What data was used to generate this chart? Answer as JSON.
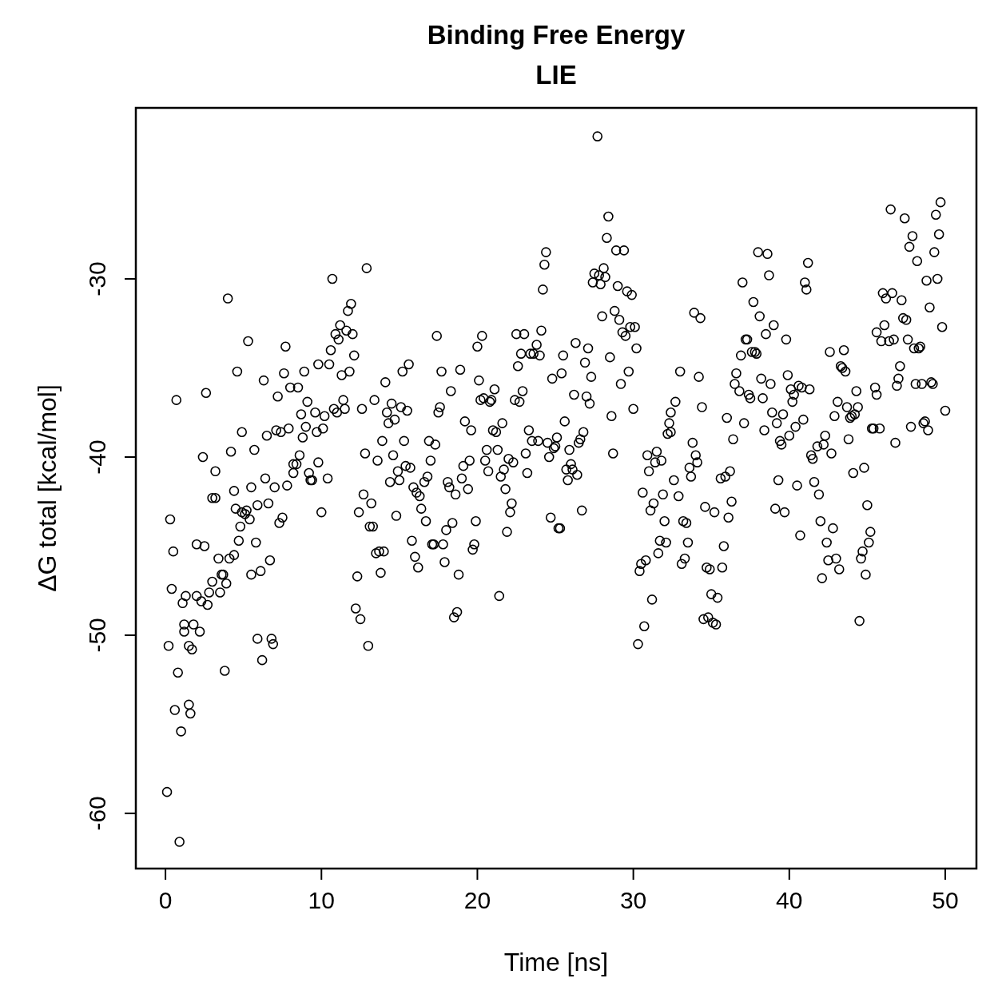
{
  "chart_data": {
    "type": "scatter",
    "title": "Binding Free Energy",
    "subtitle": "LIE",
    "xlabel": "Time [ns]",
    "ylabel": "ΔG total [kcal/mol]",
    "xlim": [
      -1.9,
      52
    ],
    "ylim": [
      -63.1,
      -20.4
    ],
    "xticks": [
      0,
      10,
      20,
      30,
      40,
      50
    ],
    "yticks": [
      -60,
      -50,
      -40,
      -30
    ],
    "grid": false,
    "marker": "circle",
    "series": [
      {
        "color": "#000000",
        "x": [
          0.1,
          0.9,
          0.2,
          0.3,
          0.5,
          0.4,
          0.6,
          0.7,
          0.8,
          1.0,
          1.1,
          1.2,
          1.2,
          1.3,
          1.5,
          1.6,
          1.5,
          1.7,
          1.8,
          2.0,
          2.0,
          2.2,
          2.3,
          2.4,
          2.5,
          2.6,
          2.7,
          2.8,
          3.0,
          3.0,
          3.2,
          3.2,
          3.4,
          3.5,
          3.6,
          3.7,
          3.8,
          3.9,
          4.0,
          4.1,
          4.2,
          4.4,
          4.4,
          4.5,
          4.6,
          4.7,
          4.8,
          4.9,
          4.9,
          5.1,
          5.2,
          5.3,
          5.4,
          5.5,
          5.5,
          5.7,
          5.8,
          5.9,
          5.9,
          6.1,
          6.2,
          6.3,
          6.4,
          6.5,
          6.6,
          6.7,
          6.8,
          6.9,
          7.0,
          7.1,
          7.2,
          7.3,
          7.4,
          7.5,
          7.6,
          7.7,
          7.8,
          7.9,
          8.0,
          8.2,
          8.2,
          8.4,
          8.5,
          8.6,
          8.7,
          8.8,
          8.9,
          9.0,
          9.1,
          9.2,
          9.3,
          9.4,
          9.6,
          9.7,
          9.8,
          9.8,
          10.0,
          10.1,
          10.2,
          10.4,
          10.5,
          10.6,
          10.7,
          10.8,
          10.9,
          11.0,
          11.1,
          11.2,
          11.3,
          11.4,
          11.5,
          11.6,
          11.7,
          11.8,
          11.9,
          12.0,
          12.1,
          12.2,
          12.3,
          12.4,
          12.5,
          12.6,
          12.7,
          12.8,
          12.9,
          13.0,
          13.1,
          13.2,
          13.3,
          13.4,
          13.5,
          13.6,
          13.7,
          13.8,
          13.9,
          14.0,
          14.1,
          14.2,
          14.3,
          14.4,
          14.5,
          14.6,
          14.7,
          14.8,
          14.9,
          15.0,
          15.1,
          15.2,
          15.3,
          15.4,
          15.5,
          15.6,
          15.7,
          15.8,
          15.9,
          16.0,
          16.1,
          16.2,
          16.3,
          16.4,
          16.6,
          16.7,
          16.8,
          16.9,
          17.0,
          17.1,
          17.2,
          17.3,
          17.4,
          17.5,
          17.6,
          17.7,
          17.8,
          17.9,
          18.0,
          18.1,
          18.2,
          18.3,
          18.4,
          18.5,
          18.6,
          18.7,
          18.8,
          18.9,
          19.0,
          19.1,
          19.2,
          19.4,
          19.5,
          19.6,
          19.7,
          19.8,
          19.9,
          20.0,
          20.1,
          20.2,
          20.3,
          20.4,
          20.5,
          20.6,
          20.7,
          20.8,
          20.9,
          21.0,
          21.1,
          21.2,
          21.3,
          21.4,
          21.5,
          21.6,
          21.7,
          21.8,
          21.9,
          22.0,
          22.1,
          22.2,
          22.3,
          22.4,
          22.5,
          22.6,
          22.7,
          22.8,
          22.9,
          23.0,
          23.1,
          23.2,
          23.3,
          23.4,
          23.5,
          23.6,
          23.8,
          23.9,
          24.0,
          24.1,
          24.2,
          24.3,
          24.4,
          24.5,
          24.6,
          24.7,
          24.8,
          24.9,
          25.0,
          25.1,
          25.2,
          25.3,
          25.4,
          25.5,
          25.6,
          25.7,
          25.8,
          25.9,
          26.0,
          26.1,
          26.2,
          26.3,
          26.4,
          26.5,
          26.6,
          26.7,
          26.8,
          26.9,
          27.0,
          27.1,
          27.2,
          27.3,
          27.4,
          27.5,
          27.7,
          27.8,
          27.9,
          28.0,
          28.1,
          28.2,
          28.3,
          28.4,
          28.5,
          28.6,
          28.7,
          28.8,
          28.9,
          29.0,
          29.1,
          29.2,
          29.3,
          29.4,
          29.5,
          29.6,
          29.7,
          29.8,
          29.9,
          30.0,
          30.1,
          30.2,
          30.3,
          30.4,
          30.5,
          30.6,
          30.7,
          30.8,
          30.9,
          31.0,
          31.1,
          31.2,
          31.3,
          31.4,
          31.5,
          31.6,
          31.7,
          31.8,
          31.9,
          32.0,
          32.1,
          32.2,
          32.3,
          32.4,
          32.4,
          32.6,
          32.7,
          32.9,
          33.0,
          33.1,
          33.2,
          33.3,
          33.4,
          33.5,
          33.6,
          33.7,
          33.8,
          33.9,
          34.0,
          34.1,
          34.2,
          34.3,
          34.4,
          34.5,
          34.6,
          34.7,
          34.8,
          34.9,
          35.0,
          35.1,
          35.2,
          35.3,
          35.4,
          35.6,
          35.7,
          35.8,
          35.9,
          36.0,
          36.1,
          36.2,
          36.3,
          36.4,
          36.5,
          36.6,
          36.8,
          36.9,
          37.0,
          37.1,
          37.2,
          37.3,
          37.4,
          37.5,
          37.6,
          37.7,
          37.8,
          37.9,
          38.0,
          38.1,
          38.2,
          38.3,
          38.4,
          38.5,
          38.6,
          38.7,
          38.8,
          38.9,
          39.0,
          39.1,
          39.2,
          39.3,
          39.4,
          39.5,
          39.6,
          39.7,
          39.8,
          39.9,
          40.0,
          40.1,
          40.2,
          40.3,
          40.4,
          40.5,
          40.6,
          40.7,
          40.8,
          40.9,
          41.0,
          41.1,
          41.2,
          41.3,
          41.4,
          41.5,
          41.6,
          41.8,
          41.9,
          42.0,
          42.1,
          42.2,
          42.3,
          42.4,
          42.5,
          42.6,
          42.7,
          42.8,
          42.9,
          43.0,
          43.1,
          43.2,
          43.3,
          43.4,
          43.5,
          43.6,
          43.7,
          43.8,
          43.9,
          44.0,
          44.1,
          44.2,
          44.3,
          44.4,
          44.5,
          44.6,
          44.7,
          44.8,
          44.9,
          45.0,
          45.1,
          45.2,
          45.3,
          45.4,
          45.5,
          45.6,
          45.6,
          45.8,
          45.9,
          46.0,
          46.1,
          46.2,
          46.4,
          46.5,
          46.6,
          46.7,
          46.8,
          46.9,
          47.0,
          47.1,
          47.2,
          47.3,
          47.4,
          47.5,
          47.6,
          47.7,
          47.8,
          47.9,
          48.0,
          48.1,
          48.2,
          48.3,
          48.4,
          48.5,
          48.6,
          48.7,
          48.8,
          48.9,
          49.0,
          49.1,
          49.2,
          49.3,
          49.4,
          49.5,
          49.6,
          49.7,
          49.8,
          50.0
        ],
        "values": [
          -58.8,
          -61.6,
          -50.6,
          -43.5,
          -45.3,
          -47.4,
          -54.2,
          -36.8,
          -52.1,
          -55.4,
          -48.2,
          -49.4,
          -49.8,
          -47.8,
          -53.9,
          -54.4,
          -50.6,
          -50.8,
          -49.4,
          -47.8,
          -44.9,
          -49.8,
          -48.1,
          -40.0,
          -45.0,
          -36.4,
          -48.3,
          -47.6,
          -47.0,
          -42.3,
          -42.3,
          -40.8,
          -45.7,
          -47.6,
          -46.6,
          -46.6,
          -52.0,
          -47.1,
          -31.1,
          -45.7,
          -39.7,
          -45.5,
          -41.9,
          -42.9,
          -35.2,
          -44.7,
          -43.9,
          -43.1,
          -38.6,
          -43.2,
          -43.0,
          -33.5,
          -43.5,
          -46.6,
          -41.7,
          -39.6,
          -44.8,
          -42.7,
          -50.2,
          -46.4,
          -51.4,
          -35.7,
          -41.2,
          -38.8,
          -42.6,
          -45.8,
          -50.2,
          -50.5,
          -41.7,
          -38.5,
          -36.6,
          -43.7,
          -38.6,
          -43.4,
          -35.3,
          -33.8,
          -41.6,
          -38.4,
          -36.1,
          -40.9,
          -40.4,
          -40.4,
          -36.1,
          -39.9,
          -37.6,
          -38.9,
          -35.2,
          -38.3,
          -36.9,
          -40.9,
          -41.3,
          -41.3,
          -37.5,
          -38.6,
          -40.3,
          -34.8,
          -43.1,
          -38.4,
          -37.7,
          -41.2,
          -34.8,
          -34.0,
          -30.0,
          -37.3,
          -33.1,
          -37.5,
          -33.4,
          -32.6,
          -35.4,
          -36.8,
          -37.3,
          -32.9,
          -31.8,
          -35.2,
          -31.4,
          -33.1,
          -34.3,
          -48.5,
          -46.7,
          -43.1,
          -49.1,
          -37.3,
          -42.1,
          -39.8,
          -29.4,
          -50.6,
          -43.9,
          -42.6,
          -43.9,
          -36.8,
          -45.4,
          -40.2,
          -45.3,
          -46.5,
          -39.1,
          -45.3,
          -35.8,
          -37.5,
          -38.1,
          -41.4,
          -37.0,
          -39.9,
          -37.9,
          -43.3,
          -40.8,
          -41.3,
          -37.2,
          -35.2,
          -39.1,
          -40.5,
          -37.4,
          -34.8,
          -40.6,
          -44.7,
          -41.7,
          -45.6,
          -42.0,
          -46.2,
          -42.2,
          -42.9,
          -41.4,
          -43.6,
          -41.1,
          -39.1,
          -40.2,
          -44.9,
          -44.9,
          -39.3,
          -33.2,
          -37.5,
          -37.2,
          -35.2,
          -44.9,
          -45.9,
          -44.1,
          -41.4,
          -41.7,
          -36.3,
          -43.7,
          -49.0,
          -42.1,
          -48.7,
          -46.6,
          -35.1,
          -41.2,
          -40.5,
          -38.0,
          -41.8,
          -40.2,
          -38.5,
          -45.2,
          -44.9,
          -43.6,
          -33.8,
          -35.7,
          -36.8,
          -33.2,
          -36.7,
          -40.2,
          -39.6,
          -40.8,
          -36.9,
          -36.8,
          -38.5,
          -36.2,
          -38.6,
          -39.6,
          -47.8,
          -41.1,
          -38.1,
          -40.7,
          -41.8,
          -44.2,
          -40.1,
          -43.1,
          -42.6,
          -40.3,
          -36.8,
          -33.1,
          -34.9,
          -36.9,
          -34.2,
          -36.3,
          -33.1,
          -39.8,
          -40.9,
          -38.5,
          -34.2,
          -39.1,
          -34.2,
          -33.7,
          -39.1,
          -34.3,
          -32.9,
          -30.6,
          -29.2,
          -28.5,
          -39.2,
          -40.0,
          -43.4,
          -35.6,
          -39.5,
          -39.4,
          -38.9,
          -44.0,
          -44.0,
          -35.3,
          -34.3,
          -38.0,
          -40.7,
          -41.3,
          -39.6,
          -40.4,
          -40.7,
          -36.5,
          -33.6,
          -41.0,
          -39.2,
          -39.0,
          -43.0,
          -38.6,
          -34.7,
          -36.6,
          -33.9,
          -37.0,
          -35.5,
          -30.2,
          -29.7,
          -22.0,
          -29.8,
          -30.3,
          -32.1,
          -29.4,
          -29.9,
          -27.7,
          -26.5,
          -34.4,
          -37.7,
          -39.8,
          -31.8,
          -28.4,
          -30.4,
          -32.3,
          -35.9,
          -33.0,
          -28.4,
          -33.2,
          -30.7,
          -35.2,
          -32.7,
          -30.9,
          -37.3,
          -32.7,
          -33.9,
          -50.5,
          -46.4,
          -46.0,
          -42.0,
          -49.5,
          -45.8,
          -39.9,
          -40.8,
          -43.0,
          -48.0,
          -42.6,
          -40.3,
          -39.7,
          -45.4,
          -44.7,
          -40.2,
          -42.1,
          -43.6,
          -44.8,
          -38.7,
          -38.1,
          -38.6,
          -37.5,
          -41.3,
          -36.9,
          -42.2,
          -35.2,
          -46.0,
          -43.6,
          -45.7,
          -43.7,
          -44.8,
          -40.6,
          -41.1,
          -39.2,
          -31.9,
          -39.9,
          -40.3,
          -35.5,
          -32.2,
          -37.2,
          -49.1,
          -42.8,
          -46.2,
          -49.0,
          -46.3,
          -47.7,
          -49.3,
          -43.1,
          -49.4,
          -47.9,
          -41.2,
          -46.2,
          -45.0,
          -41.1,
          -37.8,
          -43.4,
          -40.8,
          -42.5,
          -39.0,
          -35.9,
          -35.3,
          -36.3,
          -34.3,
          -30.2,
          -38.1,
          -33.4,
          -33.4,
          -36.5,
          -36.7,
          -34.1,
          -31.3,
          -34.1,
          -34.2,
          -28.5,
          -32.1,
          -35.6,
          -36.7,
          -38.5,
          -33.1,
          -28.6,
          -29.8,
          -35.9,
          -37.5,
          -32.6,
          -42.9,
          -38.1,
          -41.3,
          -39.1,
          -39.3,
          -37.6,
          -43.1,
          -33.4,
          -35.4,
          -38.8,
          -36.2,
          -36.9,
          -36.5,
          -38.3,
          -41.6,
          -36.0,
          -44.4,
          -36.1,
          -37.9,
          -30.2,
          -30.6,
          -29.1,
          -36.2,
          -39.9,
          -40.1,
          -41.4,
          -39.4,
          -42.1,
          -43.6,
          -46.8,
          -39.3,
          -38.8,
          -44.8,
          -45.8,
          -34.1,
          -39.8,
          -44.0,
          -37.7,
          -45.7,
          -36.9,
          -46.3,
          -34.9,
          -35.0,
          -34.0,
          -35.2,
          -37.2,
          -39.0,
          -37.8,
          -37.7,
          -40.9,
          -37.6,
          -36.3,
          -37.2,
          -49.2,
          -45.7,
          -45.3,
          -40.6,
          -46.6,
          -42.7,
          -44.8,
          -44.2,
          -38.4,
          -38.4,
          -36.1,
          -36.5,
          -33.0,
          -38.4,
          -33.5,
          -30.8,
          -32.6,
          -31.1,
          -33.5,
          -26.1,
          -30.8,
          -33.4,
          -39.2,
          -36.0,
          -35.6,
          -34.9,
          -31.2,
          -32.2,
          -26.6,
          -32.3,
          -33.4,
          -28.2,
          -38.3,
          -27.6,
          -33.9,
          -35.9,
          -29.0,
          -33.9,
          -33.8,
          -35.9,
          -38.1,
          -38.0,
          -30.1,
          -38.5,
          -31.6,
          -35.8,
          -35.9,
          -28.5,
          -26.4,
          -30.0,
          -27.5,
          -25.7,
          -32.7,
          -37.4
        ]
      }
    ]
  }
}
